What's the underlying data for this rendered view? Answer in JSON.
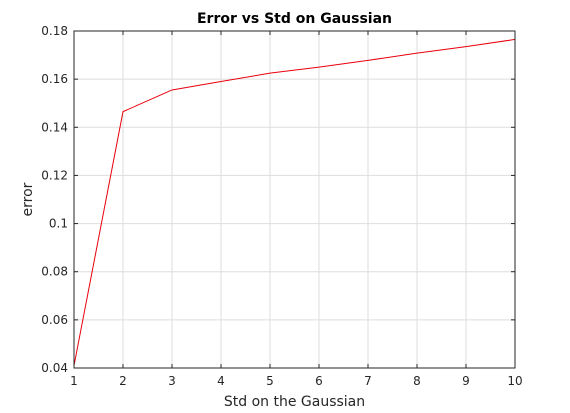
{
  "chart_data": {
    "type": "line",
    "title": "Error vs Std on Gaussian",
    "xlabel": "Std on the Gaussian",
    "ylabel": "error",
    "xlim": [
      1,
      10
    ],
    "ylim": [
      0.04,
      0.18
    ],
    "xticks": [
      1,
      2,
      3,
      4,
      5,
      6,
      7,
      8,
      9,
      10
    ],
    "yticks": [
      0.04,
      0.06,
      0.08,
      0.1,
      0.12,
      0.14,
      0.16,
      0.18
    ],
    "ytick_labels": [
      "0.04",
      "0.06",
      "0.08",
      "0.1",
      "0.12",
      "0.14",
      "0.16",
      "0.18"
    ],
    "grid": true,
    "series": [
      {
        "color": "#e8000b",
        "x": [
          1,
          2,
          3,
          4,
          5,
          6,
          7,
          8,
          9,
          10
        ],
        "y": [
          0.041,
          0.1465,
          0.1555,
          0.159,
          0.1625,
          0.165,
          0.1678,
          0.1708,
          0.1735,
          0.1765
        ]
      }
    ]
  }
}
